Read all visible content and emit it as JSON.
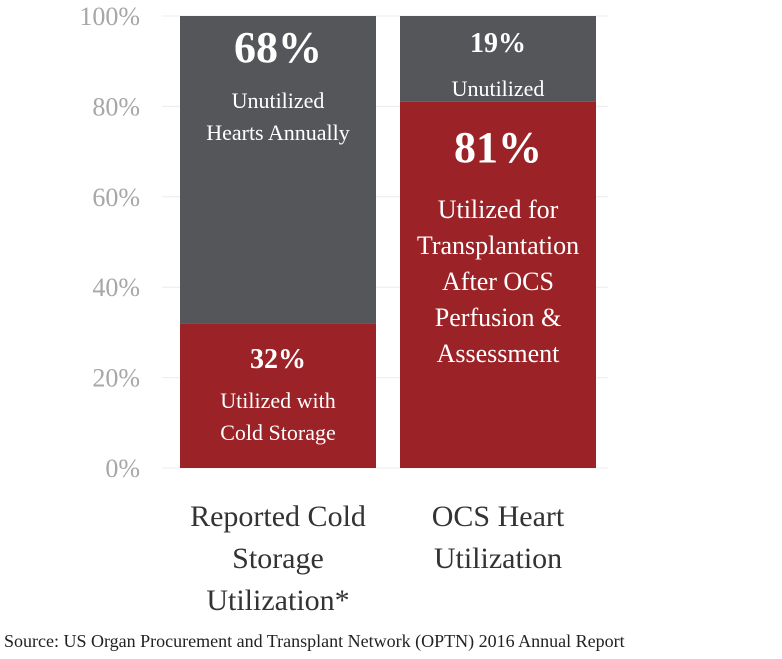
{
  "chart_data": {
    "type": "bar",
    "stacked": true,
    "ylim": [
      0,
      100
    ],
    "y_ticks": [
      "0%",
      "20%",
      "40%",
      "60%",
      "80%",
      "100%"
    ],
    "y_tick_values": [
      0,
      20,
      40,
      60,
      80,
      100
    ],
    "grid": true,
    "categories": [
      {
        "lines": [
          "Reported Cold",
          "Storage",
          "Utilization*"
        ]
      },
      {
        "lines": [
          "OCS Heart",
          "Utilization"
        ]
      }
    ],
    "bars": [
      {
        "segments": [
          {
            "value": 32,
            "color": "#9b2226",
            "label": "32%",
            "desc": [
              "Utilized with",
              "Cold Storage"
            ]
          },
          {
            "value": 68,
            "color": "#55565a",
            "label": "68%",
            "desc": [
              "Unutilized",
              "Hearts Annually"
            ]
          }
        ]
      },
      {
        "segments": [
          {
            "value": 81,
            "color": "#9b2226",
            "label": "81%",
            "desc": [
              "Utilized for",
              "Transplantation",
              "After OCS",
              "Perfusion &",
              "Assessment"
            ]
          },
          {
            "value": 19,
            "color": "#55565a",
            "label": "19%",
            "desc": [
              "Unutilized"
            ]
          }
        ]
      }
    ],
    "source": "Source: US Organ Procurement and Transplant Network (OPTN) 2016 Annual Report"
  }
}
